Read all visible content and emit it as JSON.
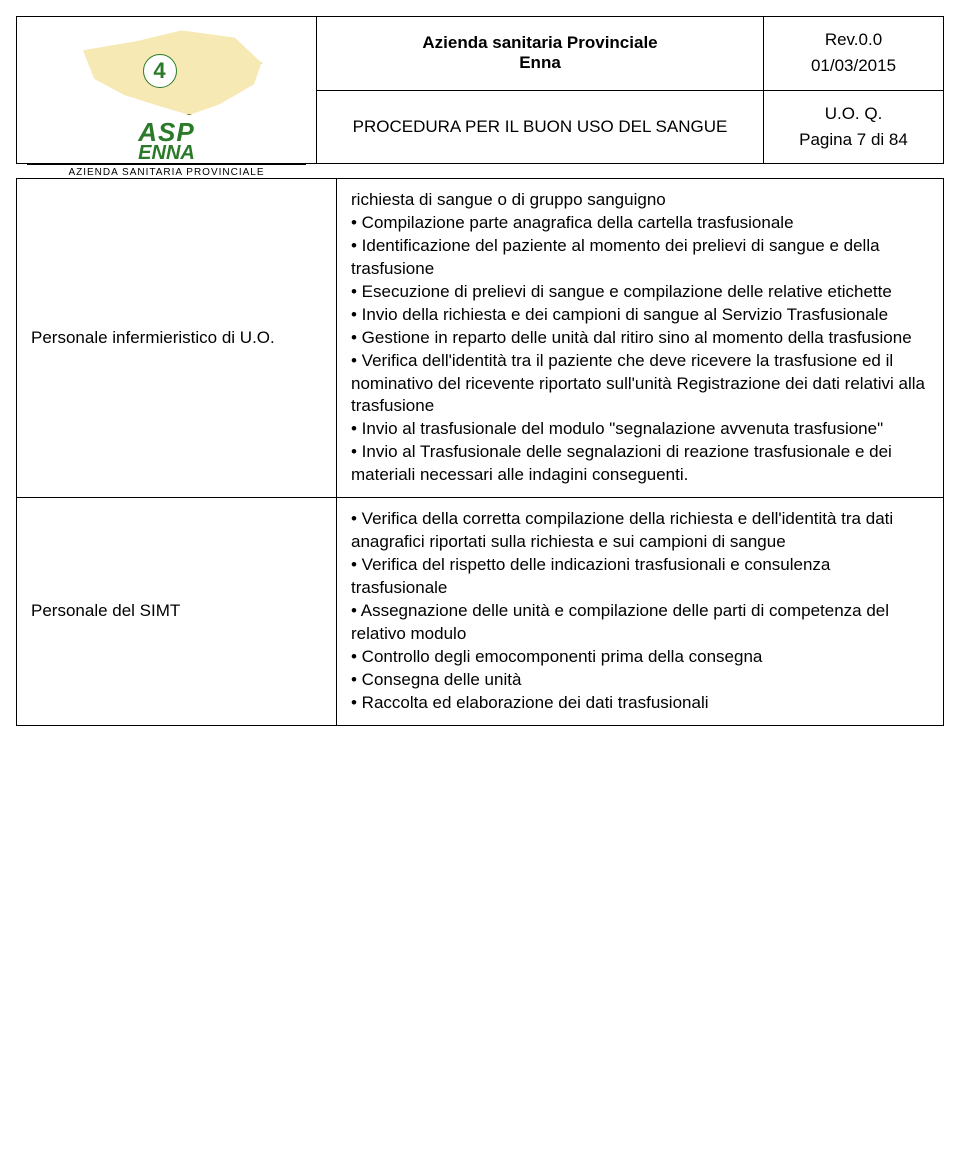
{
  "header": {
    "org_line1": "Azienda sanitaria Provinciale",
    "org_line2": "Enna",
    "procedure_title": "PROCEDURA PER IL BUON USO DEL SANGUE",
    "rev": "Rev.0.0",
    "date": "01/03/2015",
    "uoq": "U.O. Q.",
    "page": "Pagina 7 di 84",
    "logo_asp": "ASP",
    "logo_enna": "ENNA",
    "logo_sub": "AZIENDA SANITARIA PROVINCIALE",
    "logo_num": "4"
  },
  "rows": [
    {
      "label": "Personale infermieristico di U.O.",
      "lines": [
        "richiesta di sangue o di gruppo sanguigno",
        "• Compilazione parte anagrafica della cartella trasfusionale",
        "• Identificazione del paziente al momento dei prelievi di sangue e della trasfusione",
        "• Esecuzione di prelievi di sangue e compilazione delle relative etichette",
        "• Invio della richiesta e dei campioni di sangue al Servizio Trasfusionale",
        "• Gestione in reparto delle unità dal ritiro sino al momento della trasfusione",
        "• Verifica dell'identità tra il paziente che deve ricevere la trasfusione ed il nominativo del ricevente riportato sull'unità Registrazione dei dati relativi alla trasfusione",
        "• Invio al trasfusionale del modulo \"segnalazione avvenuta trasfusione\"",
        "• Invio al Trasfusionale delle segnalazioni di reazione trasfusionale e dei materiali necessari alle indagini conseguenti."
      ]
    },
    {
      "label": "Personale del SIMT",
      "lines": [
        "• Verifica della corretta compilazione della richiesta e dell'identità tra dati anagrafici riportati sulla richiesta e sui campioni di sangue",
        "• Verifica del rispetto delle indicazioni trasfusionali e consulenza trasfusionale",
        "• Assegnazione delle unità e compilazione delle parti di competenza del relativo modulo",
        "• Controllo degli emocomponenti prima della consegna",
        "• Consegna delle unità",
        "• Raccolta ed elaborazione dei dati trasfusionali"
      ]
    }
  ]
}
